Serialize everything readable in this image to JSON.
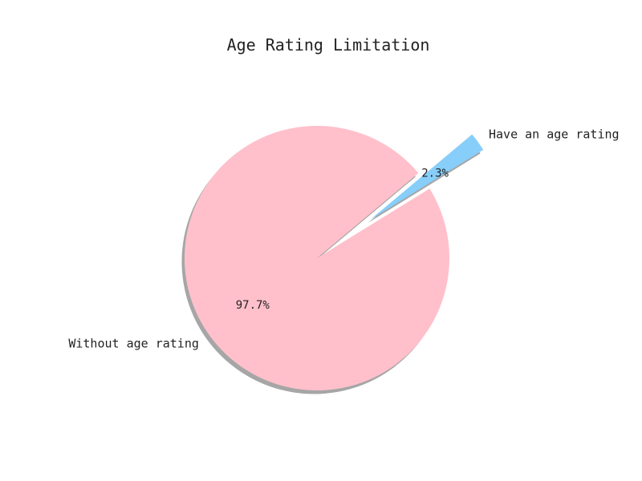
{
  "chart_data": {
    "type": "pie",
    "title": "Age Rating Limitation",
    "slices": [
      {
        "label": "Without age rating",
        "value": 97.7,
        "value_label": "97.7%",
        "color": "#ffc0cb",
        "explode": false
      },
      {
        "label": "Have an age rating",
        "value": 2.3,
        "value_label": "2.3%",
        "color": "#87cefa",
        "explode": true
      }
    ],
    "shadow": true,
    "legend": "none"
  }
}
